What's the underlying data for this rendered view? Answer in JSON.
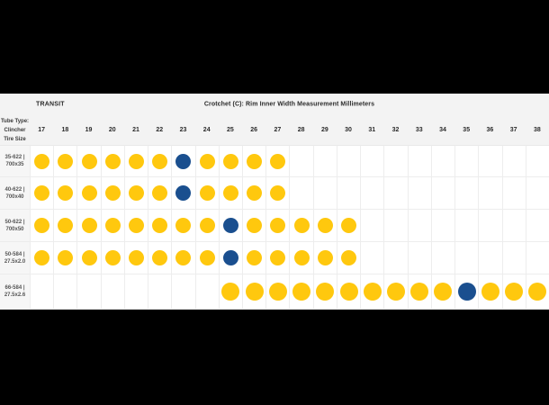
{
  "chart_data": {
    "type": "table",
    "title": "Crotchet (C): Rim Inner Width Measurement Millimeters",
    "series_label": "TRANSIT",
    "corner": {
      "line1": "Tube Type:",
      "line2": "Clincher",
      "line3": "Tire Size"
    },
    "columns": [
      "17",
      "18",
      "19",
      "20",
      "21",
      "22",
      "23",
      "24",
      "25",
      "26",
      "27",
      "28",
      "29",
      "30",
      "31",
      "32",
      "33",
      "34",
      "35",
      "36",
      "37",
      "38"
    ],
    "rows": [
      {
        "label_line1": "35-622 |",
        "label_line2": "700x35",
        "cells": [
          "yellow",
          "yellow",
          "yellow",
          "yellow",
          "yellow",
          "yellow",
          "blue",
          "yellow",
          "yellow",
          "yellow",
          "yellow",
          "",
          "",
          "",
          "",
          "",
          "",
          "",
          "",
          "",
          "",
          ""
        ]
      },
      {
        "label_line1": "40-622 |",
        "label_line2": "700x40",
        "cells": [
          "yellow",
          "yellow",
          "yellow",
          "yellow",
          "yellow",
          "yellow",
          "blue",
          "yellow",
          "yellow",
          "yellow",
          "yellow",
          "",
          "",
          "",
          "",
          "",
          "",
          "",
          "",
          "",
          "",
          ""
        ]
      },
      {
        "label_line1": "50-622 |",
        "label_line2": "700x50",
        "cells": [
          "yellow",
          "yellow",
          "yellow",
          "yellow",
          "yellow",
          "yellow",
          "yellow",
          "yellow",
          "blue",
          "yellow",
          "yellow",
          "yellow",
          "yellow",
          "yellow",
          "",
          "",
          "",
          "",
          "",
          "",
          "",
          ""
        ]
      },
      {
        "label_line1": "50-584 |",
        "label_line2": "27.5x2.0",
        "cells": [
          "yellow",
          "yellow",
          "yellow",
          "yellow",
          "yellow",
          "yellow",
          "yellow",
          "yellow",
          "blue",
          "yellow",
          "yellow",
          "yellow",
          "yellow",
          "yellow",
          "",
          "",
          "",
          "",
          "",
          "",
          "",
          ""
        ]
      },
      {
        "label_line1": "66-584 |",
        "label_line2": "27.5x2.6",
        "cells": [
          "",
          "",
          "",
          "",
          "",
          "",
          "",
          "",
          "yellow",
          "yellow",
          "yellow",
          "yellow",
          "yellow",
          "yellow",
          "yellow",
          "yellow",
          "yellow",
          "yellow",
          "blue",
          "yellow",
          "yellow",
          "yellow"
        ]
      }
    ]
  },
  "colors": {
    "yellow": "#FFC80E",
    "blue": "#1A4F8F",
    "background": "#000000",
    "panel": "#F3F3F3",
    "cell": "#FFFFFF",
    "grid_line": "#EDEDED"
  }
}
